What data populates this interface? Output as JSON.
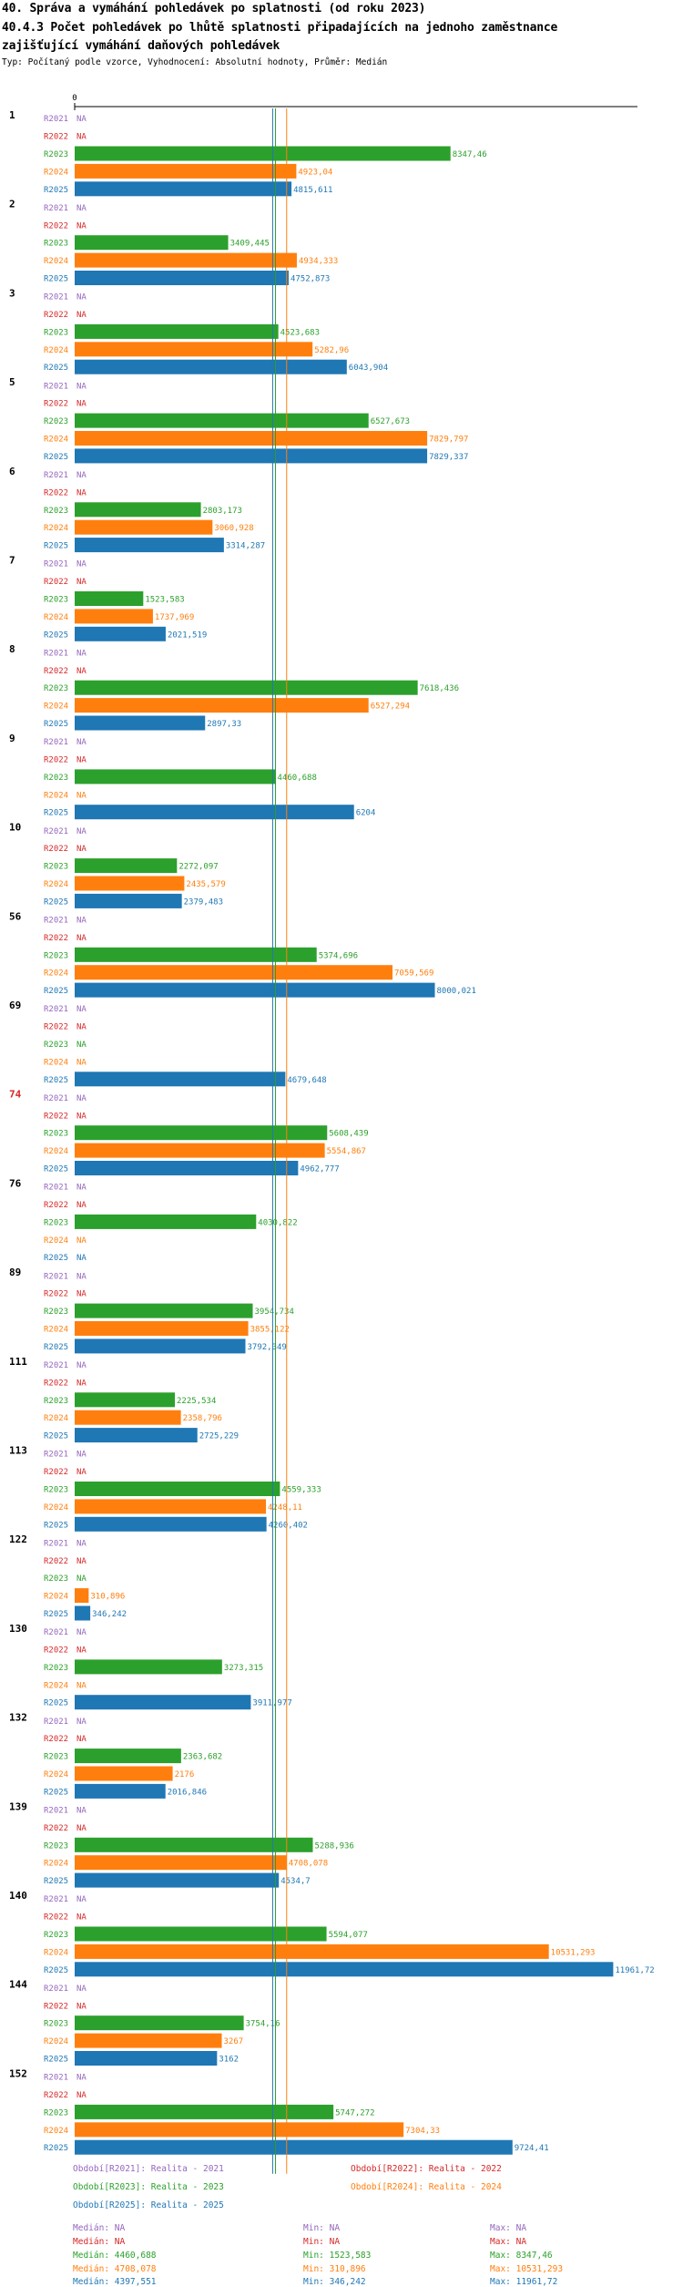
{
  "title_line1": "40. Správa a vymáhání pohledávek po splatnosti (od roku 2023)",
  "title_line2": "40.4.3 Počet pohledávek po lhůtě splatnosti připadajících na jednoho zaměstnance",
  "title_line3": "zajišťující vymáhání daňových pohledávek",
  "subtitle": "Typ: Počítaný podle vzorce, Vyhodnocení: Absolutní hodnoty, Průměr: Medián",
  "chart_data": {
    "type": "bar",
    "orientation": "horizontal",
    "xlim": [
      0,
      12500
    ],
    "axis_zero_label": "0",
    "series": [
      {
        "key": "R2021",
        "name": "Období[R2021]: Realita - 2021",
        "color": "#9467bd"
      },
      {
        "key": "R2022",
        "name": "Období[R2022]: Realita - 2022",
        "color": "#d62728"
      },
      {
        "key": "R2023",
        "name": "Období[R2023]: Realita - 2023",
        "color": "#2ca02c"
      },
      {
        "key": "R2024",
        "name": "Období[R2024]: Realita - 2024",
        "color": "#ff7f0e"
      },
      {
        "key": "R2025",
        "name": "Období[R2025]: Realita - 2025",
        "color": "#1f77b4"
      }
    ],
    "na_label": "NA",
    "groups": [
      {
        "label": "1",
        "highlight": false,
        "values": [
          null,
          null,
          8347.46,
          4923.04,
          4815.611
        ],
        "labels": [
          "NA",
          "NA",
          "8347,46",
          "4923,04",
          "4815,611"
        ]
      },
      {
        "label": "2",
        "highlight": false,
        "values": [
          null,
          null,
          3409.445,
          4934.333,
          4752.873
        ],
        "labels": [
          "NA",
          "NA",
          "3409,445",
          "4934,333",
          "4752,873"
        ]
      },
      {
        "label": "3",
        "highlight": false,
        "values": [
          null,
          null,
          4523.683,
          5282.96,
          6043.904
        ],
        "labels": [
          "NA",
          "NA",
          "4523,683",
          "5282,96",
          "6043,904"
        ]
      },
      {
        "label": "5",
        "highlight": false,
        "values": [
          null,
          null,
          6527.673,
          7829.797,
          7829.337
        ],
        "labels": [
          "NA",
          "NA",
          "6527,673",
          "7829,797",
          "7829,337"
        ]
      },
      {
        "label": "6",
        "highlight": false,
        "values": [
          null,
          null,
          2803.173,
          3060.928,
          3314.287
        ],
        "labels": [
          "NA",
          "NA",
          "2803,173",
          "3060,928",
          "3314,287"
        ]
      },
      {
        "label": "7",
        "highlight": false,
        "values": [
          null,
          null,
          1523.583,
          1737.969,
          2021.519
        ],
        "labels": [
          "NA",
          "NA",
          "1523,583",
          "1737,969",
          "2021,519"
        ]
      },
      {
        "label": "8",
        "highlight": false,
        "values": [
          null,
          null,
          7618.436,
          6527.294,
          2897.33
        ],
        "labels": [
          "NA",
          "NA",
          "7618,436",
          "6527,294",
          "2897,33"
        ]
      },
      {
        "label": "9",
        "highlight": false,
        "values": [
          null,
          null,
          4460.688,
          null,
          6204
        ],
        "labels": [
          "NA",
          "NA",
          "4460,688",
          "NA",
          "6204"
        ]
      },
      {
        "label": "10",
        "highlight": false,
        "values": [
          null,
          null,
          2272.097,
          2435.579,
          2379.483
        ],
        "labels": [
          "NA",
          "NA",
          "2272,097",
          "2435,579",
          "2379,483"
        ]
      },
      {
        "label": "56",
        "highlight": false,
        "values": [
          null,
          null,
          5374.696,
          7059.569,
          8000.021
        ],
        "labels": [
          "NA",
          "NA",
          "5374,696",
          "7059,569",
          "8000,021"
        ]
      },
      {
        "label": "69",
        "highlight": false,
        "values": [
          null,
          null,
          null,
          null,
          4679.648
        ],
        "labels": [
          "NA",
          "NA",
          "NA",
          "NA",
          "4679,648"
        ]
      },
      {
        "label": "74",
        "highlight": true,
        "values": [
          null,
          null,
          5608.439,
          5554.867,
          4962.777
        ],
        "labels": [
          "NA",
          "NA",
          "5608,439",
          "5554,867",
          "4962,777"
        ]
      },
      {
        "label": "76",
        "highlight": false,
        "values": [
          null,
          null,
          4030.822,
          null,
          null
        ],
        "labels": [
          "NA",
          "NA",
          "4030,822",
          "NA",
          "NA"
        ]
      },
      {
        "label": "89",
        "highlight": false,
        "values": [
          null,
          null,
          3954.734,
          3855.122,
          3792.349
        ],
        "labels": [
          "NA",
          "NA",
          "3954,734",
          "3855,122",
          "3792,349"
        ]
      },
      {
        "label": "111",
        "highlight": false,
        "values": [
          null,
          null,
          2225.534,
          2358.796,
          2725.229
        ],
        "labels": [
          "NA",
          "NA",
          "2225,534",
          "2358,796",
          "2725,229"
        ]
      },
      {
        "label": "113",
        "highlight": false,
        "values": [
          null,
          null,
          4559.333,
          4248.11,
          4260.402
        ],
        "labels": [
          "NA",
          "NA",
          "4559,333",
          "4248,11",
          "4260,402"
        ]
      },
      {
        "label": "122",
        "highlight": false,
        "values": [
          null,
          null,
          null,
          310.896,
          346.242
        ],
        "labels": [
          "NA",
          "NA",
          "NA",
          "310,896",
          "346,242"
        ]
      },
      {
        "label": "130",
        "highlight": false,
        "values": [
          null,
          null,
          3273.315,
          null,
          3911.977
        ],
        "labels": [
          "NA",
          "NA",
          "3273,315",
          "NA",
          "3911,977"
        ]
      },
      {
        "label": "132",
        "highlight": false,
        "values": [
          null,
          null,
          2363.682,
          2176,
          2016.846
        ],
        "labels": [
          "NA",
          "NA",
          "2363,682",
          "2176",
          "2016,846"
        ]
      },
      {
        "label": "139",
        "highlight": false,
        "values": [
          null,
          null,
          5288.936,
          4708.078,
          4534.7
        ],
        "labels": [
          "NA",
          "NA",
          "5288,936",
          "4708,078",
          "4534,7"
        ]
      },
      {
        "label": "140",
        "highlight": false,
        "values": [
          null,
          null,
          5594.077,
          10531.293,
          11961.72
        ],
        "labels": [
          "NA",
          "NA",
          "5594,077",
          "10531,293",
          "11961,72"
        ]
      },
      {
        "label": "144",
        "highlight": false,
        "values": [
          null,
          null,
          3754.16,
          3267,
          3162
        ],
        "labels": [
          "NA",
          "NA",
          "3754,16",
          "3267",
          "3162"
        ]
      },
      {
        "label": "152",
        "highlight": false,
        "values": [
          null,
          null,
          5747.272,
          7304.33,
          9724.41
        ],
        "labels": [
          "NA",
          "NA",
          "5747,272",
          "7304,33",
          "9724,41"
        ]
      }
    ],
    "reference_lines": [
      {
        "series": "R2023",
        "value": 4460.688
      },
      {
        "series": "R2024",
        "value": 4708.078
      },
      {
        "series": "R2025",
        "value": 4397.551
      }
    ]
  },
  "legend": {
    "R2021": "Období[R2021]: Realita - 2021",
    "R2022": "Období[R2022]: Realita - 2022",
    "R2023": "Období[R2023]: Realita - 2023",
    "R2024": "Období[R2024]: Realita - 2024",
    "R2025": "Období[R2025]: Realita - 2025"
  },
  "stats": {
    "R2021": {
      "median": "Medián: NA",
      "min": "Min: NA",
      "max": "Max: NA"
    },
    "R2022": {
      "median": "Medián: NA",
      "min": "Min: NA",
      "max": "Max: NA"
    },
    "R2023": {
      "median": "Medián: 4460,688",
      "min": "Min: 1523,583",
      "max": "Max: 8347,46"
    },
    "R2024": {
      "median": "Medián: 4708,078",
      "min": "Min: 310,896",
      "max": "Max: 10531,293"
    },
    "R2025": {
      "median": "Medián: 4397,551",
      "min": "Min: 346,242",
      "max": "Max: 11961,72"
    }
  },
  "colors": {
    "R2021": "#9467bd",
    "R2022": "#d62728",
    "R2023": "#2ca02c",
    "R2024": "#ff7f0e",
    "R2025": "#1f77b4",
    "highlight": "#d62728"
  }
}
